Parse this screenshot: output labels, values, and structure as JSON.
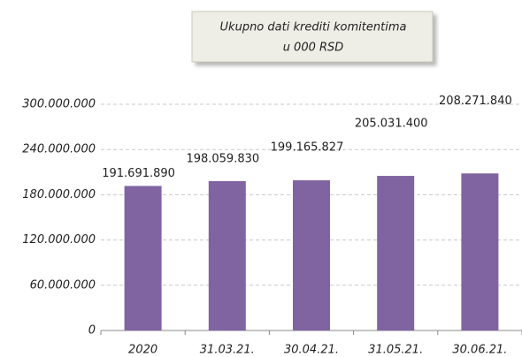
{
  "chart_data": {
    "type": "bar",
    "title": "Ukupno dati krediti komitentima",
    "subtitle": "u 000 RSD",
    "categories": [
      "2020",
      "31.03.21.",
      "30.04.21.",
      "31.05.21.",
      "30.06.21."
    ],
    "values": [
      191691890,
      198059830,
      199165827,
      205031400,
      208271840
    ],
    "value_labels": [
      "191.691.890",
      "198.059.830",
      "199.165.827",
      "205.031.400",
      "208.271.840"
    ],
    "color": "#8064a2",
    "ylim": [
      0,
      300000000
    ],
    "yticks": [
      0,
      {
        "value": 60000000,
        "label": "60.000.000"
      },
      {
        "value": 120000000,
        "label": "120.000.000"
      },
      {
        "value": 180000000,
        "label": "180.000.000"
      },
      {
        "value": 240000000,
        "label": "240.000.000"
      },
      {
        "value": 300000000,
        "label": "300.000.000"
      }
    ],
    "grid": true
  }
}
